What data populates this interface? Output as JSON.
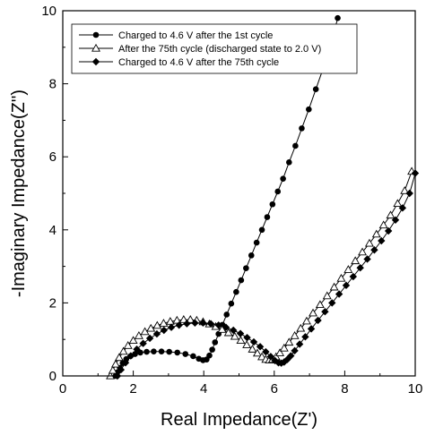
{
  "chart_data": {
    "type": "scatter",
    "title": "",
    "xlabel": "Real Impedance(Z')",
    "ylabel": "-Imaginary Impedance(Z'')",
    "xlim": [
      0,
      10
    ],
    "ylim": [
      0,
      10
    ],
    "x_ticks": [
      0,
      2,
      4,
      6,
      8,
      10
    ],
    "y_ticks": [
      0,
      2,
      4,
      6,
      8,
      10
    ],
    "grid": false,
    "legend_position": "top-left",
    "series": [
      {
        "name": "Charged to 4.6 V after the 1st cycle",
        "marker": "filled-circle",
        "color": "#000000",
        "x": [
          1.5,
          1.55,
          1.62,
          1.7,
          1.8,
          1.92,
          2.05,
          2.2,
          2.38,
          2.58,
          2.8,
          3.02,
          3.25,
          3.48,
          3.7,
          3.86,
          3.98,
          4.08,
          4.16,
          4.24,
          4.32,
          4.42,
          4.53,
          4.65,
          4.78,
          4.92,
          5.06,
          5.2,
          5.35,
          5.5,
          5.65,
          5.8,
          5.95,
          6.1,
          6.25,
          6.42,
          6.6,
          6.78,
          6.98,
          7.18,
          7.38,
          7.58,
          7.8
        ],
        "y": [
          0.0,
          0.1,
          0.22,
          0.35,
          0.46,
          0.54,
          0.6,
          0.64,
          0.66,
          0.67,
          0.67,
          0.66,
          0.64,
          0.6,
          0.54,
          0.47,
          0.43,
          0.45,
          0.56,
          0.72,
          0.92,
          1.15,
          1.4,
          1.68,
          1.98,
          2.3,
          2.62,
          2.95,
          3.3,
          3.65,
          4.0,
          4.35,
          4.7,
          5.05,
          5.4,
          5.85,
          6.3,
          6.78,
          7.3,
          7.85,
          8.4,
          8.95,
          9.8
        ]
      },
      {
        "name": "After the 75th cycle (discharged state to 2.0 V)",
        "marker": "open-triangle",
        "color": "#000000",
        "x": [
          1.35,
          1.42,
          1.5,
          1.6,
          1.72,
          1.85,
          2.0,
          2.16,
          2.33,
          2.5,
          2.68,
          2.86,
          3.05,
          3.24,
          3.43,
          3.62,
          3.8,
          3.98,
          4.16,
          4.34,
          4.52,
          4.7,
          4.88,
          5.05,
          5.22,
          5.38,
          5.52,
          5.65,
          5.76,
          5.86,
          5.95,
          6.05,
          6.16,
          6.28,
          6.42,
          6.58,
          6.75,
          6.92,
          7.1,
          7.3,
          7.5,
          7.7,
          7.9,
          8.1,
          8.3,
          8.5,
          8.7,
          8.9,
          9.1,
          9.3,
          9.5,
          9.7,
          9.9
        ],
        "y": [
          0.0,
          0.15,
          0.32,
          0.5,
          0.67,
          0.83,
          0.97,
          1.1,
          1.21,
          1.3,
          1.38,
          1.44,
          1.49,
          1.52,
          1.54,
          1.54,
          1.52,
          1.48,
          1.42,
          1.35,
          1.27,
          1.18,
          1.08,
          0.97,
          0.85,
          0.73,
          0.62,
          0.52,
          0.45,
          0.43,
          0.45,
          0.52,
          0.63,
          0.76,
          0.92,
          1.1,
          1.3,
          1.5,
          1.72,
          1.95,
          2.19,
          2.43,
          2.67,
          2.91,
          3.15,
          3.39,
          3.63,
          3.88,
          4.13,
          4.4,
          4.72,
          5.07,
          5.6
        ]
      },
      {
        "name": "Charged to 4.6 V after the 75th cycle",
        "marker": "filled-diamond",
        "color": "#000000",
        "x": [
          1.55,
          1.65,
          1.78,
          1.93,
          2.1,
          2.28,
          2.47,
          2.67,
          2.87,
          3.08,
          3.3,
          3.52,
          3.75,
          3.98,
          4.2,
          4.42,
          4.63,
          4.84,
          5.04,
          5.23,
          5.42,
          5.6,
          5.76,
          5.9,
          6.02,
          6.12,
          6.2,
          6.28,
          6.37,
          6.47,
          6.58,
          6.72,
          6.88,
          7.05,
          7.24,
          7.44,
          7.64,
          7.84,
          8.04,
          8.24,
          8.44,
          8.64,
          8.84,
          9.04,
          9.24,
          9.44,
          9.64,
          9.84,
          10.0
        ],
        "y": [
          0.0,
          0.17,
          0.36,
          0.55,
          0.73,
          0.89,
          1.03,
          1.15,
          1.25,
          1.33,
          1.39,
          1.43,
          1.45,
          1.45,
          1.43,
          1.39,
          1.33,
          1.25,
          1.16,
          1.05,
          0.93,
          0.8,
          0.66,
          0.53,
          0.42,
          0.36,
          0.35,
          0.38,
          0.45,
          0.55,
          0.69,
          0.87,
          1.07,
          1.29,
          1.52,
          1.76,
          2.0,
          2.24,
          2.48,
          2.72,
          2.96,
          3.2,
          3.45,
          3.7,
          3.97,
          4.27,
          4.6,
          5.0,
          5.55
        ]
      }
    ]
  }
}
